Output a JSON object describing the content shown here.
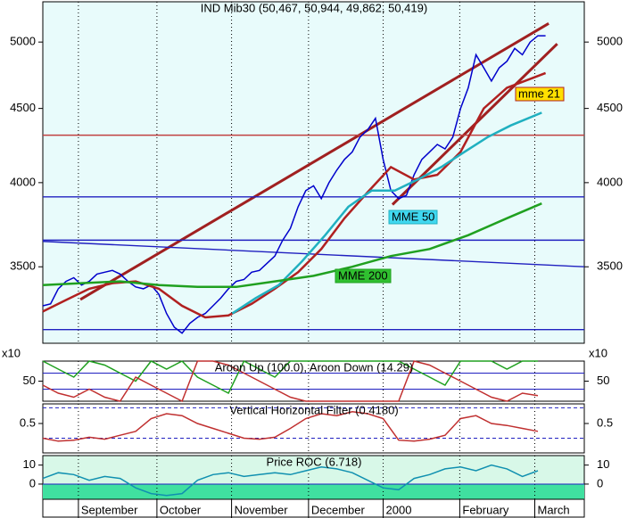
{
  "chart_data": [
    {
      "type": "line",
      "title": "IND Mib30 (50,467, 50,944, 49,862, 50,419)",
      "log_scale": true,
      "xlim": [
        0,
        140
      ],
      "ylim": [
        3100,
        5330
      ],
      "yticks": [
        3500,
        4000,
        4500,
        5000
      ],
      "xticks": [
        {
          "value": 9.2,
          "label": "September"
        },
        {
          "value": 29.5,
          "label": "October"
        },
        {
          "value": 48.8,
          "label": "November"
        },
        {
          "value": 68.7,
          "label": "December"
        },
        {
          "value": 88,
          "label": "2000"
        },
        {
          "value": 107.8,
          "label": "February"
        },
        {
          "value": 127.2,
          "label": "March"
        }
      ],
      "x": [
        0,
        2,
        4,
        6,
        8,
        10,
        12,
        14,
        16,
        18,
        20,
        22,
        24,
        26,
        28,
        30,
        32,
        34,
        36,
        38,
        40,
        42,
        44,
        46,
        48,
        50,
        52,
        54,
        56,
        58,
        60,
        62,
        64,
        66,
        68,
        70,
        72,
        74,
        76,
        78,
        80,
        82,
        84,
        86,
        88,
        90,
        92,
        94,
        96,
        98,
        100,
        102,
        104,
        106,
        108,
        110,
        112,
        114,
        116,
        118,
        120,
        122,
        124,
        126,
        128,
        130
      ],
      "series": [
        {
          "color": "#0000cc",
          "values": [
            3290,
            3300,
            3380,
            3420,
            3440,
            3400,
            3420,
            3460,
            3470,
            3480,
            3460,
            3420,
            3390,
            3380,
            3400,
            3350,
            3250,
            3180,
            3150,
            3200,
            3230,
            3250,
            3290,
            3330,
            3380,
            3420,
            3430,
            3470,
            3480,
            3520,
            3560,
            3650,
            3720,
            3850,
            3950,
            3980,
            3900,
            4000,
            4080,
            4150,
            4200,
            4300,
            4350,
            4430,
            4150,
            3950,
            3900,
            3920,
            4050,
            4150,
            4200,
            4250,
            4220,
            4300,
            4500,
            4650,
            4900,
            4800,
            4700,
            4800,
            4850,
            4950,
            4900,
            5000,
            5050,
            5050
          ]
        },
        {
          "name": "mme 21",
          "color": "#b02020",
          "x": [
            0,
            6,
            12,
            18,
            24,
            30,
            36,
            42,
            48,
            54,
            60,
            66,
            72,
            78,
            84,
            90,
            96,
            102,
            108,
            114,
            120,
            130
          ],
          "values": [
            3260,
            3320,
            3380,
            3410,
            3420,
            3380,
            3290,
            3230,
            3240,
            3300,
            3380,
            3470,
            3600,
            3780,
            3940,
            4100,
            4020,
            4050,
            4200,
            4500,
            4650,
            4760
          ]
        },
        {
          "name": "MME 50",
          "color": "#20b0c0",
          "x": [
            49,
            55,
            61,
            67,
            73,
            79,
            85,
            91,
            97,
            103,
            109,
            115,
            121,
            129
          ],
          "values": [
            3250,
            3330,
            3400,
            3530,
            3680,
            3850,
            3950,
            3950,
            4020,
            4100,
            4200,
            4300,
            4380,
            4470
          ]
        },
        {
          "name": "MME 200",
          "color": "#20a020",
          "x": [
            0,
            10,
            20,
            30,
            40,
            50,
            60,
            70,
            80,
            90,
            100,
            110,
            120,
            129
          ],
          "values": [
            3400,
            3410,
            3420,
            3400,
            3390,
            3390,
            3420,
            3450,
            3500,
            3560,
            3600,
            3680,
            3780,
            3870
          ]
        }
      ],
      "lines": [
        {
          "color": "#a02020",
          "x": [
            9.7,
            130.8
          ],
          "values": [
            3323,
            5150
          ]
        },
        {
          "color": "#a02020",
          "x": [
            90.4,
            133
          ],
          "values": [
            3863,
            4986
          ]
        },
        {
          "color": "#c04040",
          "x": [
            0,
            140
          ],
          "values": [
            4313,
            4313
          ]
        },
        {
          "color": "#2020c0",
          "x": [
            0,
            140
          ],
          "values": [
            3911,
            3911
          ]
        },
        {
          "color": "#2020c0",
          "x": [
            0,
            140
          ],
          "values": [
            3651,
            3651
          ]
        },
        {
          "color": "#2020c0",
          "x": [
            0,
            140
          ],
          "values": [
            3168,
            3168
          ]
        },
        {
          "color": "#2020c0",
          "x": [
            0,
            140
          ],
          "values": [
            3644,
            3500
          ]
        }
      ]
    },
    {
      "type": "line",
      "title": "Aroon Up (100.0), Aroon Down (14.29)",
      "scale_label": "x10",
      "xlim": [
        0,
        140
      ],
      "ylim": [
        0,
        100
      ],
      "yticks": [
        50
      ],
      "levels": [
        70,
        30
      ],
      "x": [
        0,
        4,
        8,
        12,
        16,
        20,
        24,
        28,
        32,
        36,
        40,
        44,
        48,
        52,
        56,
        60,
        64,
        68,
        72,
        76,
        80,
        84,
        88,
        92,
        96,
        100,
        104,
        108,
        112,
        116,
        120,
        124,
        128
      ],
      "series": [
        {
          "color": "#20a020",
          "values": [
            100,
            80,
            60,
            100,
            90,
            70,
            50,
            100,
            80,
            100,
            60,
            40,
            20,
            100,
            80,
            60,
            100,
            100,
            100,
            100,
            100,
            100,
            100,
            100,
            80,
            60,
            40,
            100,
            100,
            100,
            80,
            100,
            100
          ]
        },
        {
          "color": "#c03030",
          "values": [
            40,
            20,
            10,
            30,
            10,
            0,
            60,
            40,
            20,
            0,
            100,
            100,
            90,
            70,
            50,
            30,
            10,
            0,
            0,
            0,
            0,
            0,
            0,
            0,
            100,
            90,
            70,
            50,
            30,
            10,
            0,
            20,
            14
          ]
        }
      ]
    },
    {
      "type": "line",
      "title": "Vertical Horizontal Filter (0.4180)",
      "xlim": [
        0,
        140
      ],
      "ylim": [
        0.2,
        0.7
      ],
      "yticks": [
        0.5
      ],
      "levels": [
        0.66,
        0.35
      ],
      "x": [
        0,
        4,
        8,
        12,
        16,
        20,
        24,
        28,
        32,
        36,
        40,
        44,
        48,
        52,
        56,
        60,
        64,
        68,
        72,
        76,
        80,
        84,
        88,
        92,
        96,
        100,
        104,
        108,
        112,
        116,
        120,
        124,
        128
      ],
      "series": [
        {
          "color": "#c03030",
          "values": [
            0.35,
            0.32,
            0.33,
            0.36,
            0.34,
            0.38,
            0.42,
            0.55,
            0.6,
            0.58,
            0.5,
            0.45,
            0.4,
            0.35,
            0.34,
            0.36,
            0.45,
            0.55,
            0.6,
            0.58,
            0.62,
            0.6,
            0.55,
            0.33,
            0.32,
            0.34,
            0.38,
            0.55,
            0.58,
            0.5,
            0.48,
            0.45,
            0.42
          ]
        }
      ]
    },
    {
      "type": "line",
      "title": "Price ROC (6.718)",
      "xlim": [
        0,
        140
      ],
      "ylim": [
        -8,
        15
      ],
      "yticks": [
        0,
        10
      ],
      "x": [
        0,
        4,
        8,
        12,
        16,
        20,
        24,
        28,
        32,
        36,
        40,
        44,
        48,
        52,
        56,
        60,
        64,
        68,
        72,
        76,
        80,
        84,
        88,
        92,
        96,
        100,
        104,
        108,
        112,
        116,
        120,
        124,
        128
      ],
      "series": [
        {
          "color": "#1090b0",
          "values": [
            3,
            6,
            5,
            2,
            4,
            3,
            -2,
            -5,
            -6,
            -5,
            2,
            5,
            6,
            4,
            5,
            6,
            5,
            7,
            9,
            8,
            6,
            2,
            -2,
            -3,
            3,
            5,
            8,
            9,
            7,
            10,
            8,
            4,
            7
          ]
        }
      ]
    }
  ]
}
